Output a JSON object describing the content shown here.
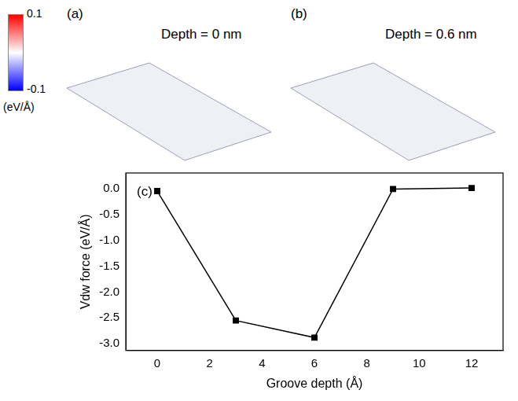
{
  "chart_data": {
    "type": "line",
    "x": [
      0,
      3,
      6,
      9,
      12
    ],
    "values": [
      -0.05,
      -2.55,
      -2.88,
      -0.01,
      0.01
    ],
    "color": "#000000",
    "marker": "square",
    "line_style": "solid",
    "x_label": "Groove depth (Å)",
    "y_label": "Vdw force (eV/Å)",
    "xlim": [
      -1.2,
      13.2
    ],
    "xticks": [
      0,
      2,
      4,
      6,
      8,
      10,
      12
    ],
    "ylim": [
      -3.13,
      0.3
    ],
    "yticks": [
      {
        "value": 0,
        "label": "0.0"
      },
      -0.5,
      {
        "value": -1,
        "label": "-1.0"
      },
      -1.5,
      {
        "value": -2,
        "label": "-2.0"
      },
      -2.5,
      {
        "value": -3,
        "label": "-3.0"
      }
    ],
    "grid": false,
    "annotations": [
      "(c)"
    ]
  },
  "panels": [
    {
      "label": "(a)",
      "text": "Depth = 0 nm"
    },
    {
      "label": "(b)",
      "text": "Depth = 0.6 nm"
    }
  ],
  "colorbar": {
    "range": [
      -0.1,
      0.1
    ],
    "ticks": [
      0.1,
      -0.1
    ],
    "unit": "(eV/Å)",
    "colors": [
      "#ff0000",
      "#ffffff",
      "#0000ff"
    ]
  }
}
